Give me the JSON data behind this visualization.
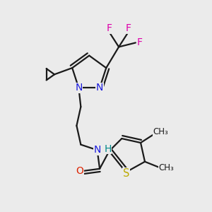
{
  "bg_color": "#ebebeb",
  "bond_color": "#1a1a1a",
  "bond_width": 1.6,
  "figsize": [
    3.0,
    3.0
  ],
  "dpi": 100,
  "colors": {
    "N": "#1a1add",
    "O": "#dd2200",
    "S": "#bbaa00",
    "F": "#dd00aa",
    "H": "#008888",
    "C": "#1a1a1a"
  }
}
